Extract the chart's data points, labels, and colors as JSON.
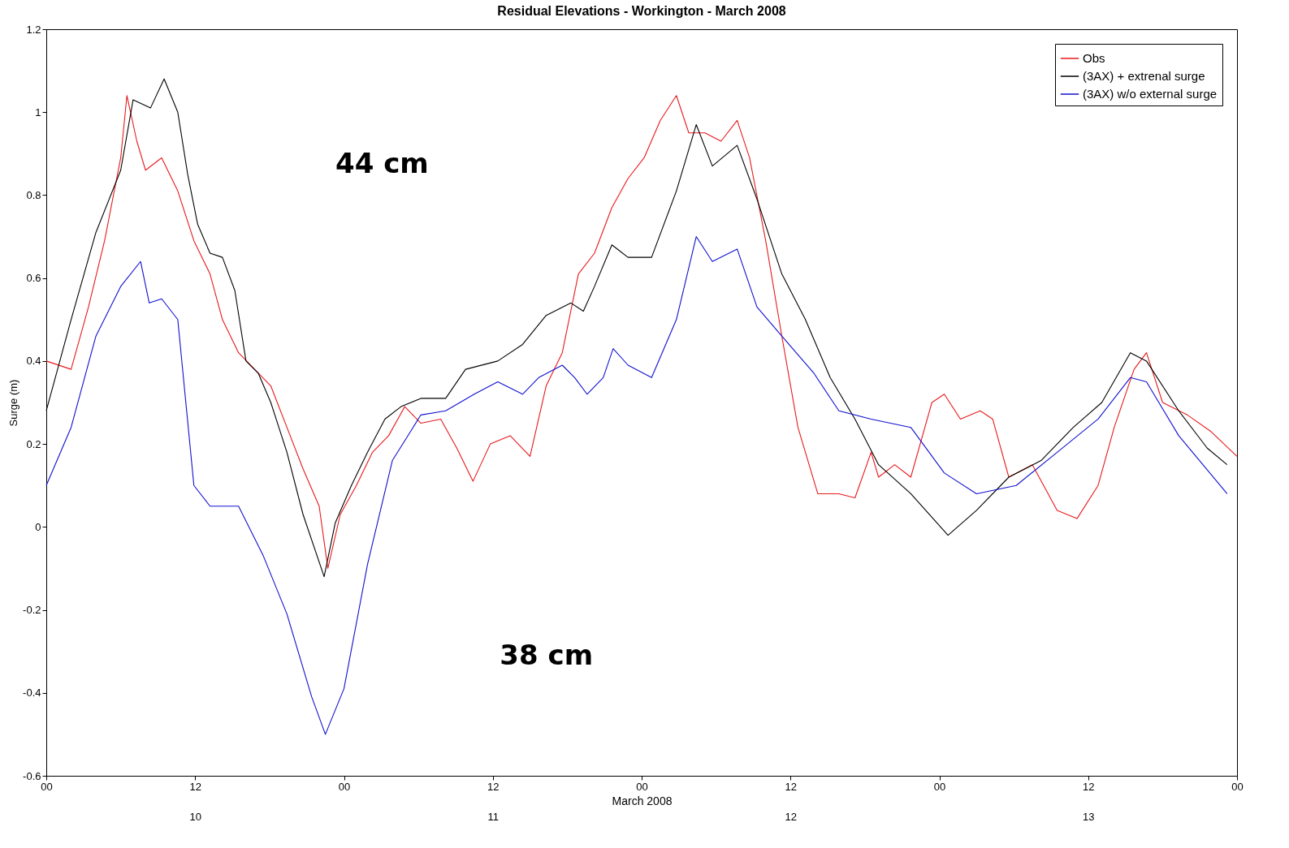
{
  "chart_data": {
    "type": "line",
    "title": "Residual Elevations - Workington - March 2008",
    "xlabel": "March 2008",
    "ylabel": "Surge (m)",
    "xlim": [
      0,
      96
    ],
    "xticks": [
      {
        "value": 0,
        "label": "00"
      },
      {
        "value": 12,
        "label": "12"
      },
      {
        "value": 24,
        "label": "00"
      },
      {
        "value": 36,
        "label": "12"
      },
      {
        "value": 48,
        "label": "00"
      },
      {
        "value": 60,
        "label": "12"
      },
      {
        "value": 72,
        "label": "00"
      },
      {
        "value": 84,
        "label": "12"
      },
      {
        "value": 96,
        "label": "00"
      }
    ],
    "x2lim": [
      9.5,
      13.5
    ],
    "x2ticks": [
      10,
      11,
      12,
      13
    ],
    "ylim": [
      -0.6,
      1.2
    ],
    "yticks": [
      -0.6,
      -0.4,
      -0.2,
      0,
      0.2,
      0.4,
      0.6,
      0.8,
      1,
      1.2
    ],
    "legend": "top right",
    "grid": false,
    "annotations": [
      "44 cm",
      "38 cm"
    ],
    "series": [
      {
        "name": "Obs",
        "color": "#e8191c",
        "x": [
          0,
          2.0,
          3.4,
          4.7,
          6.0,
          6.5,
          7.3,
          8.0,
          9.3,
          10.6,
          11.9,
          13.2,
          14.2,
          15.5,
          16.8,
          18.1,
          19.4,
          20.7,
          22.0,
          22.7,
          23.7,
          25.0,
          26.3,
          27.6,
          28.9,
          30.2,
          31.8,
          33.1,
          34.4,
          35.8,
          37.4,
          39.0,
          40.3,
          41.6,
          42.9,
          44.2,
          45.6,
          46.9,
          48.2,
          49.5,
          50.8,
          51.8,
          53.1,
          54.4,
          55.7,
          56.7,
          58.0,
          59.3,
          60.6,
          62.2,
          63.9,
          65.2,
          66.5,
          67.1,
          68.4,
          69.7,
          71.4,
          72.4,
          73.7,
          75.3,
          76.3,
          77.6,
          79.5,
          81.5,
          83.1,
          84.8,
          86.1,
          87.7,
          88.7,
          90.0,
          92.0,
          93.9,
          96.0
        ],
        "values": [
          0.4,
          0.38,
          0.53,
          0.69,
          0.89,
          1.04,
          0.93,
          0.86,
          0.89,
          0.81,
          0.69,
          0.61,
          0.5,
          0.42,
          0.38,
          0.34,
          0.24,
          0.14,
          0.05,
          -0.1,
          0.03,
          0.1,
          0.18,
          0.22,
          0.29,
          0.25,
          0.26,
          0.19,
          0.11,
          0.2,
          0.22,
          0.17,
          0.34,
          0.42,
          0.61,
          0.66,
          0.77,
          0.84,
          0.89,
          0.98,
          1.04,
          0.95,
          0.95,
          0.93,
          0.98,
          0.89,
          0.69,
          0.46,
          0.24,
          0.08,
          0.08,
          0.07,
          0.18,
          0.12,
          0.15,
          0.12,
          0.3,
          0.32,
          0.26,
          0.28,
          0.26,
          0.12,
          0.15,
          0.04,
          0.02,
          0.1,
          0.24,
          0.38,
          0.42,
          0.3,
          0.27,
          0.23,
          0.17
        ]
      },
      {
        "name": "(3AX) + extrenal surge",
        "color": "#000000",
        "x": [
          0,
          2.0,
          4.0,
          6.0,
          7.0,
          8.4,
          9.5,
          10.6,
          11.4,
          12.2,
          13.2,
          14.2,
          15.2,
          16.1,
          17.1,
          18.1,
          19.4,
          20.7,
          22.4,
          23.3,
          24.6,
          25.9,
          27.3,
          28.6,
          30.2,
          32.2,
          33.8,
          36.4,
          38.4,
          40.3,
          42.3,
          43.3,
          44.2,
          45.6,
          46.9,
          48.8,
          50.8,
          52.4,
          53.7,
          55.7,
          57.3,
          59.3,
          61.2,
          63.2,
          65.2,
          67.1,
          69.7,
          72.7,
          75.0,
          77.6,
          80.2,
          82.8,
          85.1,
          87.4,
          88.7,
          91.3,
          93.6,
          95.2
        ],
        "values": [
          0.28,
          0.5,
          0.71,
          0.86,
          1.03,
          1.01,
          1.08,
          1.0,
          0.85,
          0.73,
          0.66,
          0.65,
          0.57,
          0.4,
          0.37,
          0.3,
          0.18,
          0.03,
          -0.12,
          0.01,
          0.1,
          0.18,
          0.26,
          0.29,
          0.31,
          0.31,
          0.38,
          0.4,
          0.44,
          0.51,
          0.54,
          0.52,
          0.58,
          0.68,
          0.65,
          0.65,
          0.81,
          0.97,
          0.87,
          0.92,
          0.79,
          0.61,
          0.5,
          0.36,
          0.26,
          0.15,
          0.08,
          -0.02,
          0.04,
          0.12,
          0.16,
          0.24,
          0.3,
          0.42,
          0.4,
          0.28,
          0.19,
          0.15
        ]
      },
      {
        "name": "(3AX) w/o external surge",
        "color": "#1010d0",
        "x": [
          0,
          2.0,
          4.0,
          6.0,
          7.6,
          8.3,
          9.3,
          10.6,
          11.9,
          13.2,
          15.5,
          17.5,
          19.4,
          21.4,
          22.5,
          24.0,
          25.9,
          27.9,
          30.2,
          32.2,
          34.5,
          36.4,
          38.4,
          39.7,
          41.6,
          42.6,
          43.6,
          44.9,
          45.7,
          46.9,
          48.8,
          50.8,
          52.4,
          53.7,
          55.7,
          57.3,
          59.3,
          61.9,
          63.9,
          66.5,
          69.7,
          72.4,
          75.0,
          78.2,
          81.5,
          84.8,
          87.4,
          88.7,
          91.3,
          95.2
        ],
        "values": [
          0.1,
          0.24,
          0.46,
          0.58,
          0.64,
          0.54,
          0.55,
          0.5,
          0.1,
          0.05,
          0.05,
          -0.07,
          -0.21,
          -0.41,
          -0.5,
          -0.39,
          -0.09,
          0.16,
          0.27,
          0.28,
          0.32,
          0.35,
          0.32,
          0.36,
          0.39,
          0.36,
          0.32,
          0.36,
          0.43,
          0.39,
          0.36,
          0.5,
          0.7,
          0.64,
          0.67,
          0.53,
          0.46,
          0.37,
          0.28,
          0.26,
          0.24,
          0.13,
          0.08,
          0.1,
          0.18,
          0.26,
          0.36,
          0.35,
          0.22,
          0.08
        ]
      }
    ]
  }
}
